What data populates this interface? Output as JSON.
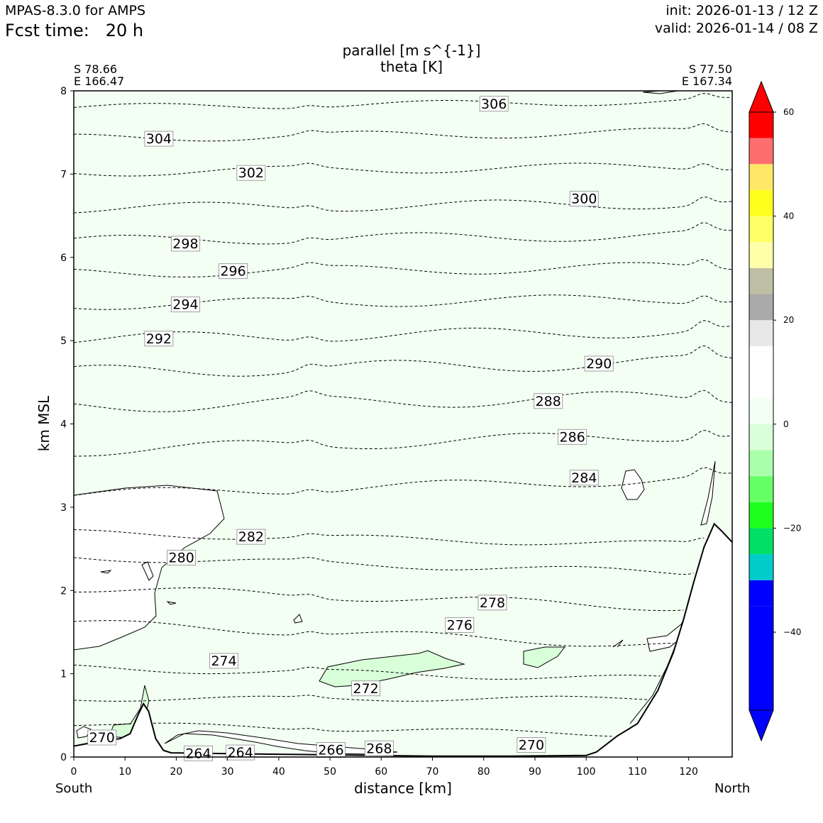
{
  "header": {
    "model": "MPAS-8.3.0 for AMPS",
    "fcst_label": "Fcst time:   20 h",
    "init": "init: 2026-01-13 / 12 Z",
    "valid": "valid: 2026-01-14 / 08 Z"
  },
  "chart_data": {
    "type": "contour",
    "title": "parallel [m s^{-1}]",
    "subtitle": "theta [K]",
    "xlabel": "distance [km]",
    "ylabel": "km MSL",
    "xlim": [
      0,
      128.5
    ],
    "ylim": [
      0,
      8
    ],
    "x_ticks": [
      0,
      10,
      20,
      30,
      40,
      50,
      60,
      70,
      80,
      90,
      100,
      110,
      120
    ],
    "y_ticks": [
      0,
      1,
      2,
      3,
      4,
      5,
      6,
      7,
      8
    ],
    "left_endpoint": {
      "lat": "S 78.66",
      "lon": "E 166.47",
      "label": "South"
    },
    "right_endpoint": {
      "lat": "S 77.50",
      "lon": "E 167.34",
      "label": "North"
    },
    "colorbar": {
      "ticks": [
        60,
        40,
        20,
        0,
        -20,
        -40
      ],
      "levels": [
        -55,
        -50,
        -45,
        -40,
        -35,
        -30,
        -25,
        -20,
        -15,
        -10,
        -5,
        0,
        5,
        10,
        15,
        20,
        25,
        30,
        35,
        40,
        45,
        50,
        55,
        60
      ],
      "colors": [
        "#0000ff",
        "#0000ff",
        "#00cccc",
        "#00e066",
        "#1eff1e",
        "#66ff66",
        "#aaffaa",
        "#d9ffd9",
        "#f2fff2",
        "#ffffff",
        "#ffffff",
        "#e8e8e8",
        "#aaaaaa",
        "#bfbfa6",
        "#ffffaa",
        "#ffff66",
        "#ffff1e",
        "#ffe866",
        "#ff6e6e",
        "#ff0000"
      ],
      "extend_min_color": "#0000ff",
      "extend_max_color": "#ff0000"
    },
    "fill_colors": {
      "background": "#f2fff2",
      "zero_region": "#ffffff",
      "minus10_region": "#d9ffd9"
    },
    "theta_labels": [
      {
        "value": "306",
        "x": 82.0,
        "y": 7.84
      },
      {
        "value": "304",
        "x": 16.6,
        "y": 7.42
      },
      {
        "value": "302",
        "x": 34.6,
        "y": 7.01
      },
      {
        "value": "300",
        "x": 99.6,
        "y": 6.7
      },
      {
        "value": "298",
        "x": 21.8,
        "y": 6.16
      },
      {
        "value": "296",
        "x": 31.1,
        "y": 5.83
      },
      {
        "value": "294",
        "x": 21.8,
        "y": 5.43
      },
      {
        "value": "292",
        "x": 16.6,
        "y": 5.02
      },
      {
        "value": "290",
        "x": 102.5,
        "y": 4.72
      },
      {
        "value": "288",
        "x": 92.6,
        "y": 4.27
      },
      {
        "value": "286",
        "x": 97.3,
        "y": 3.84
      },
      {
        "value": "284",
        "x": 99.6,
        "y": 3.35
      },
      {
        "value": "282",
        "x": 34.6,
        "y": 2.64
      },
      {
        "value": "280",
        "x": 21.0,
        "y": 2.39
      },
      {
        "value": "278",
        "x": 81.7,
        "y": 1.85
      },
      {
        "value": "276",
        "x": 75.3,
        "y": 1.58
      },
      {
        "value": "274",
        "x": 29.3,
        "y": 1.15
      },
      {
        "value": "272",
        "x": 57.0,
        "y": 0.82
      },
      {
        "value": "270",
        "x": 5.5,
        "y": 0.23
      },
      {
        "value": "270",
        "x": 89.3,
        "y": 0.14
      },
      {
        "value": "268",
        "x": 59.6,
        "y": 0.1
      },
      {
        "value": "266",
        "x": 50.2,
        "y": 0.08
      },
      {
        "value": "264",
        "x": 24.3,
        "y": 0.04
      },
      {
        "value": "264",
        "x": 32.5,
        "y": 0.05
      }
    ],
    "theta_lines": [
      {
        "base": 7.8,
        "tilt": 0.08,
        "amp": 0.04
      },
      {
        "base": 7.43,
        "tilt": 0.08,
        "amp": 0.05
      },
      {
        "base": 7.02,
        "tilt": 0.08,
        "amp": 0.05
      },
      {
        "base": 6.59,
        "tilt": 0.06,
        "amp": 0.06
      },
      {
        "base": 6.2,
        "tilt": 0.07,
        "amp": 0.06
      },
      {
        "base": 5.81,
        "tilt": 0.08,
        "amp": 0.06
      },
      {
        "base": 5.43,
        "tilt": 0.08,
        "amp": 0.06
      },
      {
        "base": 5.02,
        "tilt": 0.1,
        "amp": 0.07
      },
      {
        "base": 4.62,
        "tilt": 0.13,
        "amp": 0.08
      },
      {
        "base": 4.21,
        "tilt": 0.12,
        "amp": 0.08
      },
      {
        "base": 3.68,
        "tilt": 0.2,
        "amp": 0.07
      },
      {
        "base": 3.15,
        "tilt": 0.2,
        "amp": 0.06
      },
      {
        "base": 2.69,
        "tilt": -0.15,
        "amp": 0.04
      },
      {
        "base": 2.4,
        "tilt": -0.2,
        "amp": 0.04
      },
      {
        "base": 2.03,
        "tilt": -0.25,
        "amp": 0.05
      },
      {
        "base": 1.61,
        "tilt": -0.3,
        "amp": 0.05
      },
      {
        "base": 1.07,
        "tilt": -0.15,
        "amp": 0.04
      },
      {
        "base": 0.7,
        "tilt": 0.0,
        "amp": 0.03
      },
      {
        "base": 0.4,
        "tilt": -0.15,
        "amp": 0.03
      }
    ],
    "terrain": [
      [
        0,
        0.13
      ],
      [
        5,
        0.19
      ],
      [
        9,
        0.22
      ],
      [
        11,
        0.28
      ],
      [
        12.5,
        0.5
      ],
      [
        13.6,
        0.64
      ],
      [
        14.6,
        0.55
      ],
      [
        16,
        0.22
      ],
      [
        17.5,
        0.08
      ],
      [
        19,
        0.05
      ],
      [
        30,
        0.04
      ],
      [
        45,
        0.03
      ],
      [
        58,
        0.02
      ],
      [
        70,
        0.01
      ],
      [
        85,
        0.01
      ],
      [
        100,
        0.02
      ],
      [
        102,
        0.06
      ],
      [
        106,
        0.25
      ],
      [
        110,
        0.4
      ],
      [
        114,
        0.8
      ],
      [
        117,
        1.25
      ],
      [
        119,
        1.65
      ],
      [
        121,
        2.1
      ],
      [
        123,
        2.52
      ],
      [
        125,
        2.8
      ],
      [
        126.5,
        2.71
      ],
      [
        128.5,
        2.58
      ]
    ]
  }
}
